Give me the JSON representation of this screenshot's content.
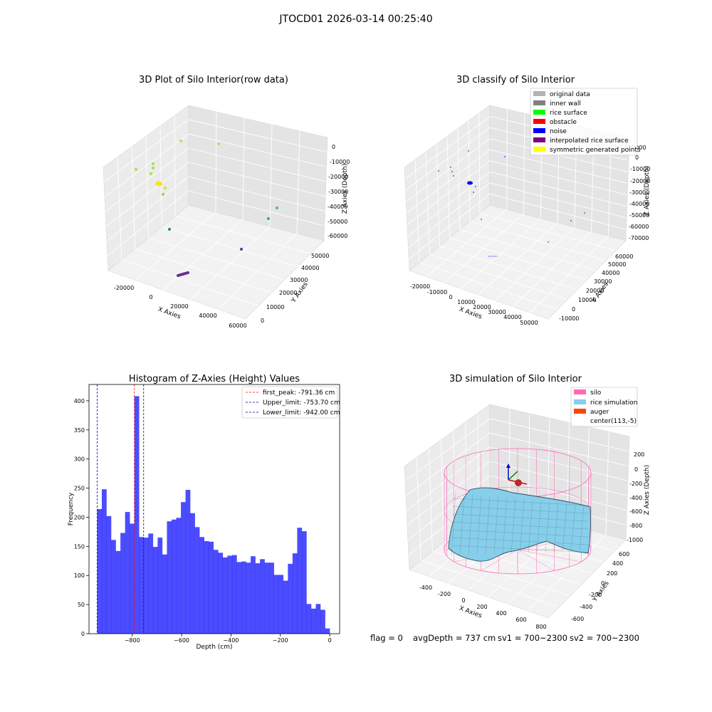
{
  "figure": {
    "suptitle": "JTOCD01 2026-03-14 00:25:40",
    "status": {
      "flag": "flag = 0",
      "avg": "avgDepth = 737 cm",
      "sv1": "sv1 = 700~2300",
      "sv2": "sv2 = 700~2300"
    }
  },
  "colors": {
    "original data": "#b3b3b3",
    "inner wall": "#808080",
    "rice surface": "#00ff00",
    "obstacle": "#ff0000",
    "noise": "#0000ff",
    "interpolated rice surface": "#800080",
    "symmetric generated points": "#ffff00",
    "silo": "#ff69b4",
    "rice simulation": "#87ceeb",
    "auger": "#ff4500",
    "histogram bar": "#0000ff",
    "first peak line": "#ff0000",
    "limit lines": "#0000aa"
  },
  "chart_data": [
    {
      "type": "scatter",
      "title": "3D Plot of Silo Interior(row data)",
      "xlabel": "X Axies",
      "ylabel": "Y Axies",
      "zlabel": "Z Axies (Depth)",
      "xticks": [
        "-20000",
        "0",
        "20000",
        "40000",
        "60000"
      ],
      "yticks": [
        "0",
        "10000",
        "20000",
        "30000",
        "40000",
        "50000"
      ],
      "zticks": [
        "0",
        "-10000",
        "-20000",
        "-30000",
        "-40000",
        "-50000",
        "-60000"
      ],
      "grid": true
    },
    {
      "type": "scatter",
      "title": "3D classify of Silo Interior",
      "xlabel": "X Axies",
      "ylabel": "Y Axies",
      "zlabel": "Z Axies (Depth)",
      "xticks": [
        "-20000",
        "-10000",
        "0",
        "10000",
        "20000",
        "30000",
        "40000",
        "50000"
      ],
      "yticks": [
        "-10000",
        "0",
        "10000",
        "20000",
        "30000",
        "40000",
        "50000",
        "60000"
      ],
      "zticks": [
        "10000",
        "0",
        "-10000",
        "-20000",
        "-30000",
        "-40000",
        "-50000",
        "-60000",
        "-70000"
      ],
      "legend": [
        "original data",
        "inner wall",
        "rice surface",
        "obstacle",
        "noise",
        "interpolated rice surface",
        "symmetric generated points"
      ],
      "legend_position": "top-right",
      "grid": true
    },
    {
      "type": "bar",
      "title": "Histogram of Z-Axies (Height) Values",
      "xlabel": "Depth (cm)",
      "ylabel": "Frequency",
      "xlim": [
        -975,
        40
      ],
      "ylim": [
        0,
        428
      ],
      "xticks": [
        -800,
        -600,
        -400,
        -200,
        0
      ],
      "yticks": [
        0,
        50,
        100,
        150,
        200,
        250,
        300,
        350,
        400
      ],
      "bin_start": -942,
      "bin_width": 18.84,
      "values": [
        214,
        248,
        202,
        161,
        142,
        173,
        209,
        189,
        408,
        166,
        165,
        172,
        149,
        165,
        136,
        193,
        196,
        199,
        226,
        247,
        207,
        183,
        166,
        159,
        158,
        144,
        139,
        131,
        134,
        135,
        123,
        124,
        122,
        133,
        121,
        128,
        122,
        122,
        101,
        101,
        91,
        120,
        138,
        182,
        176,
        51,
        43,
        51,
        41,
        9
      ],
      "vlines": [
        {
          "label": "first_peak: -791.36 cm",
          "x": -791.36,
          "color": "first peak line"
        },
        {
          "label": "Upper_limit: -753.70 cm",
          "x": -753.7,
          "color": "limit lines"
        },
        {
          "label": "Lower_limit: -942.00 cm",
          "x": -942.0,
          "color": "limit lines"
        }
      ],
      "legend_position": "top-right",
      "grid": false
    },
    {
      "type": "surface",
      "title": "3D simulation of Silo Interior",
      "xlabel": "X Axies",
      "ylabel": "Y Axies",
      "zlabel": "Z Axies (Depth)",
      "xticks": [
        "-400",
        "-200",
        "0",
        "200",
        "400",
        "600",
        "800"
      ],
      "yticks": [
        "-600",
        "-400",
        "-200",
        "0",
        "200",
        "400",
        "600"
      ],
      "zticks": [
        "200",
        "0",
        "-200",
        "-400",
        "-600",
        "-800",
        "-1000"
      ],
      "legend": [
        "silo",
        "rice simulation",
        "auger",
        "center(113,-5)"
      ],
      "legend_position": "top-right",
      "grid": true
    }
  ]
}
